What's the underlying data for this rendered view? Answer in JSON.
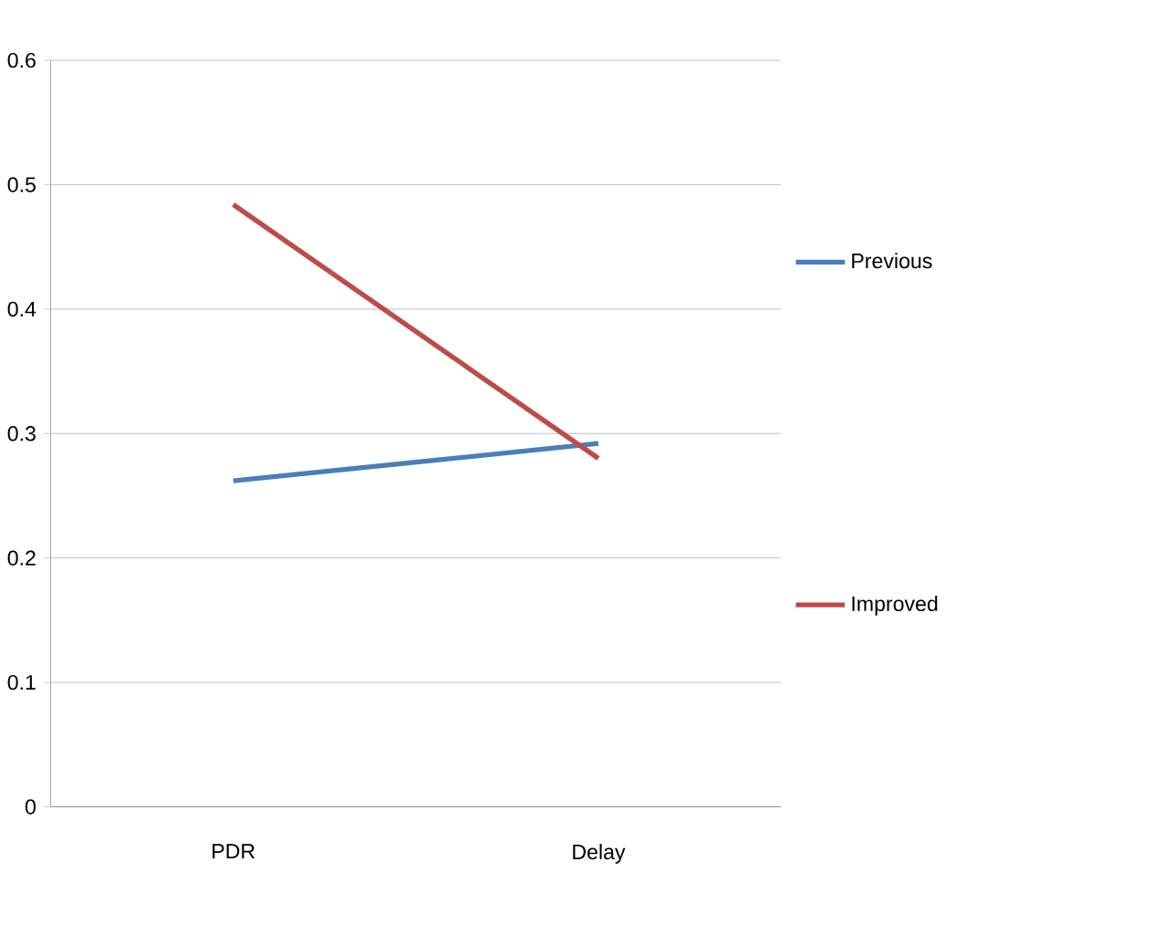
{
  "chart_data": {
    "type": "line",
    "categories": [
      "PDR",
      "Delay"
    ],
    "series": [
      {
        "name": "Previous",
        "color": "#4a7ebb",
        "values": [
          0.262,
          0.292
        ]
      },
      {
        "name": "Improved",
        "color": "#be4b48",
        "values": [
          0.484,
          0.28
        ]
      }
    ],
    "ylim": [
      0,
      0.6
    ],
    "yticks": [
      0,
      0.1,
      0.2,
      0.3,
      0.4,
      0.5,
      0.6
    ],
    "grid": "y",
    "legend": "right",
    "marker": "none",
    "line_style": "solid"
  }
}
